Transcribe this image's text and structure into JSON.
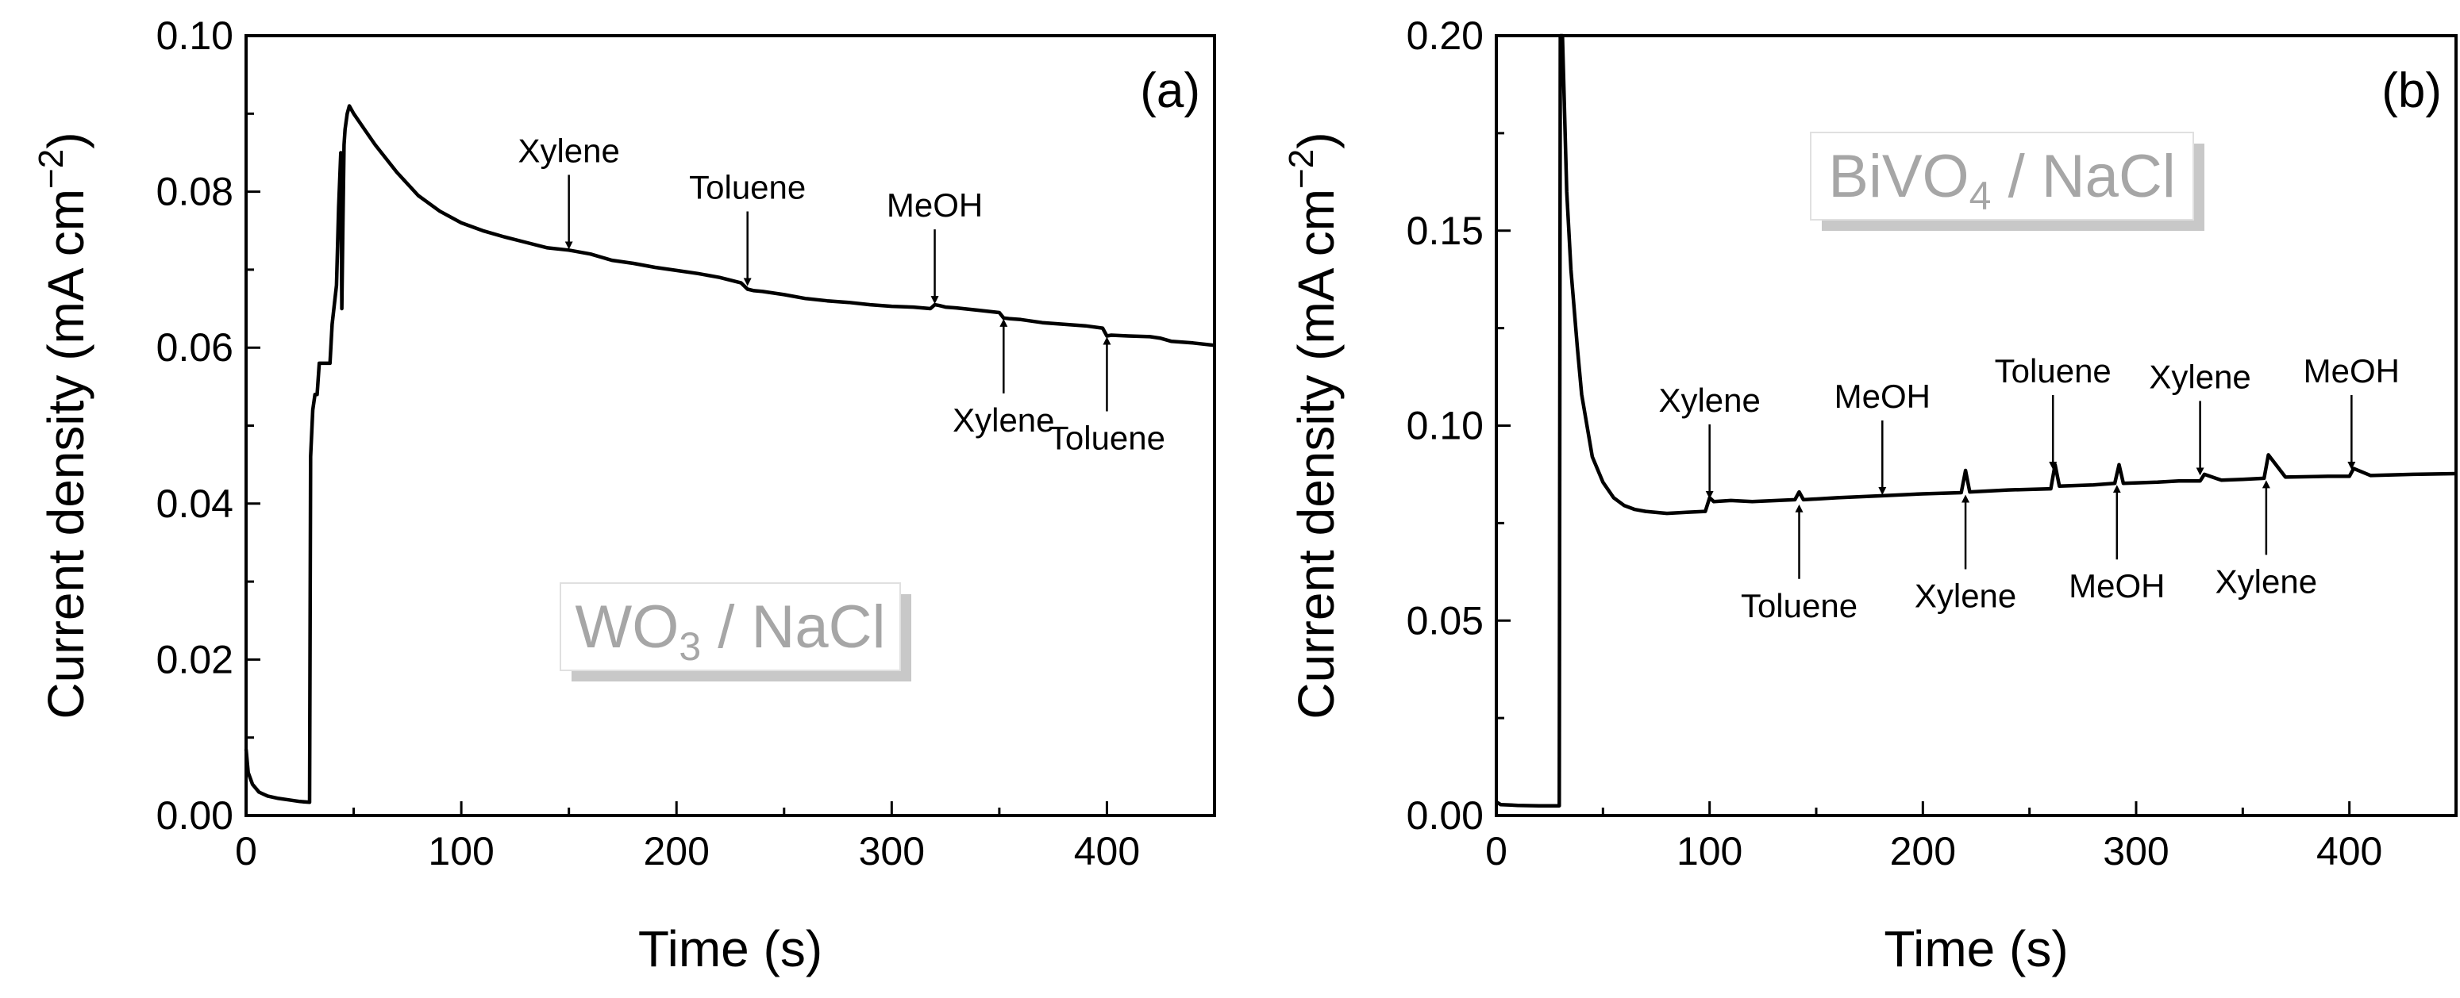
{
  "chart_data": [
    {
      "type": "line",
      "panel_label": "(a)",
      "inset_label": {
        "main": "WO",
        "sub": "3",
        "rest": " / NaCl"
      },
      "xlabel": "Time (s)",
      "ylabel": {
        "main": "Current density (mA cm",
        "sup": "−2",
        "end": ")"
      },
      "xlim": [
        0,
        450
      ],
      "ylim": [
        0,
        0.1
      ],
      "xticks": [
        0,
        100,
        200,
        300,
        400
      ],
      "yticks": [
        0.0,
        0.02,
        0.04,
        0.06,
        0.08,
        0.1
      ],
      "ytick_labels": [
        "0.00",
        "0.02",
        "0.04",
        "0.06",
        "0.08",
        "0.10"
      ],
      "series": [
        {
          "x": [
            0,
            1,
            3,
            6,
            10,
            15,
            20,
            25,
            29.5,
            30,
            31,
            32,
            33,
            34,
            36,
            39,
            40,
            42,
            43,
            44,
            44.5,
            45,
            45.5,
            46,
            47,
            48,
            50,
            55,
            60,
            70,
            80,
            90,
            100,
            110,
            120,
            130,
            140,
            150,
            160,
            170,
            180,
            190,
            200,
            210,
            220,
            230,
            233,
            236,
            240,
            250,
            260,
            270,
            280,
            290,
            300,
            310,
            318,
            320,
            322,
            325,
            330,
            340,
            350,
            352,
            355,
            360,
            370,
            380,
            390,
            398,
            400,
            402,
            410,
            420,
            425,
            430,
            440,
            450
          ],
          "y": [
            0.0085,
            0.0055,
            0.004,
            0.003,
            0.0025,
            0.0022,
            0.002,
            0.0018,
            0.0017,
            0.046,
            0.052,
            0.054,
            0.054,
            0.058,
            0.058,
            0.058,
            0.063,
            0.068,
            0.078,
            0.085,
            0.065,
            0.076,
            0.086,
            0.088,
            0.09,
            0.091,
            0.09,
            0.088,
            0.086,
            0.0825,
            0.0795,
            0.0775,
            0.076,
            0.075,
            0.0742,
            0.0735,
            0.0728,
            0.0725,
            0.072,
            0.0712,
            0.0708,
            0.0703,
            0.0699,
            0.0695,
            0.069,
            0.0683,
            0.0675,
            0.0673,
            0.0672,
            0.0668,
            0.0663,
            0.066,
            0.0658,
            0.0655,
            0.0653,
            0.0652,
            0.065,
            0.0655,
            0.0654,
            0.0652,
            0.0651,
            0.0648,
            0.0645,
            0.0638,
            0.0637,
            0.0636,
            0.0632,
            0.063,
            0.0628,
            0.0625,
            0.0615,
            0.0616,
            0.0615,
            0.0614,
            0.0612,
            0.0608,
            0.0606,
            0.0603
          ]
        }
      ],
      "annotations": [
        {
          "text": "Xylene",
          "x": 150,
          "y": 0.0725,
          "side": "above"
        },
        {
          "text": "Toluene",
          "x": 233,
          "y": 0.0678,
          "side": "above"
        },
        {
          "text": "MeOH",
          "x": 320,
          "y": 0.0655,
          "side": "above"
        },
        {
          "text": "Xylene",
          "x": 352,
          "y": 0.0638,
          "side": "below"
        },
        {
          "text": "Toluene",
          "x": 400,
          "y": 0.0615,
          "side": "below"
        }
      ]
    },
    {
      "type": "line",
      "panel_label": "(b)",
      "inset_label": {
        "main": "BiVO",
        "sub": "4",
        "rest": " / NaCl"
      },
      "xlabel": "Time (s)",
      "ylabel": {
        "main": "Current density (mA cm",
        "sup": "−2",
        "end": ")"
      },
      "xlim": [
        0,
        450
      ],
      "ylim": [
        0,
        0.2
      ],
      "xticks": [
        0,
        100,
        200,
        300,
        400
      ],
      "yticks": [
        0.0,
        0.05,
        0.1,
        0.15,
        0.2
      ],
      "ytick_labels": [
        "0.00",
        "0.05",
        "0.10",
        "0.15",
        "0.20"
      ],
      "series": [
        {
          "x": [
            0,
            2,
            10,
            20,
            29.5,
            30,
            31,
            32,
            33,
            35,
            38,
            40,
            45,
            50,
            55,
            60,
            65,
            70,
            80,
            90,
            98,
            100,
            102,
            110,
            120,
            140,
            142,
            144,
            160,
            180,
            200,
            218,
            220,
            222,
            240,
            260,
            262,
            264,
            280,
            290,
            292,
            294,
            310,
            320,
            330,
            332,
            340,
            350,
            360,
            362,
            370,
            390,
            400,
            402,
            410,
            430,
            450
          ],
          "y": [
            0.0035,
            0.0028,
            0.0026,
            0.0025,
            0.0025,
            0.2,
            0.2,
            0.18,
            0.16,
            0.14,
            0.12,
            0.108,
            0.092,
            0.0855,
            0.0815,
            0.0795,
            0.0785,
            0.078,
            0.0775,
            0.0778,
            0.078,
            0.0815,
            0.0805,
            0.0808,
            0.0805,
            0.081,
            0.083,
            0.081,
            0.0815,
            0.082,
            0.0825,
            0.0828,
            0.0885,
            0.083,
            0.0835,
            0.0838,
            0.09,
            0.0845,
            0.0848,
            0.0852,
            0.09,
            0.0852,
            0.0855,
            0.0858,
            0.0858,
            0.0875,
            0.086,
            0.0862,
            0.0865,
            0.0925,
            0.0868,
            0.087,
            0.087,
            0.089,
            0.0872,
            0.0875,
            0.0877
          ]
        }
      ],
      "annotations": [
        {
          "text": "Xylene",
          "x": 100,
          "y": 0.081,
          "side": "above"
        },
        {
          "text": "Toluene",
          "x": 142,
          "y": 0.08,
          "side": "below"
        },
        {
          "text": "MeOH",
          "x": 181,
          "y": 0.082,
          "side": "above"
        },
        {
          "text": "Xylene",
          "x": 220,
          "y": 0.0825,
          "side": "below"
        },
        {
          "text": "Toluene",
          "x": 261,
          "y": 0.0885,
          "side": "above"
        },
        {
          "text": "MeOH",
          "x": 291,
          "y": 0.085,
          "side": "below"
        },
        {
          "text": "Xylene",
          "x": 330,
          "y": 0.087,
          "side": "above"
        },
        {
          "text": "Xylene",
          "x": 361,
          "y": 0.0862,
          "side": "below"
        },
        {
          "text": "MeOH",
          "x": 401,
          "y": 0.0885,
          "side": "above"
        }
      ]
    }
  ]
}
